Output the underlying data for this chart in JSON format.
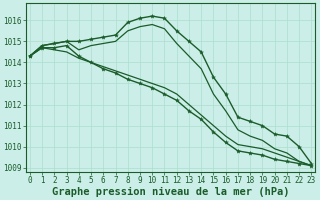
{
  "title": "Graphe pression niveau de la mer (hPa)",
  "xlabel_hours": [
    0,
    1,
    2,
    3,
    4,
    5,
    6,
    7,
    8,
    9,
    10,
    11,
    12,
    13,
    14,
    15,
    16,
    17,
    18,
    19,
    20,
    21,
    22,
    23
  ],
  "ylim": [
    1008.8,
    1016.8
  ],
  "yticks": [
    1009,
    1010,
    1011,
    1012,
    1013,
    1014,
    1015,
    1016
  ],
  "bg_color": "#cceee8",
  "grid_color": "#aaddcc",
  "line_color": "#1a5c2a",
  "lines": [
    {
      "data": [
        1014.3,
        1014.8,
        1014.9,
        1015.0,
        1015.0,
        1015.1,
        1015.2,
        1015.3,
        1015.9,
        1016.1,
        1016.2,
        1016.1,
        1015.5,
        1015.0,
        1014.5,
        1013.3,
        1012.5,
        1011.4,
        1011.2,
        1011.0,
        1010.6,
        1010.5,
        1010.0,
        1009.2
      ],
      "marker": true,
      "lw": 1.0
    },
    {
      "data": [
        1014.3,
        1014.8,
        1014.9,
        1015.0,
        1014.6,
        1014.8,
        1014.9,
        1015.0,
        1015.5,
        1015.7,
        1015.8,
        1015.6,
        1014.9,
        1014.3,
        1013.7,
        1012.5,
        1011.7,
        1010.8,
        1010.5,
        1010.3,
        1009.9,
        1009.7,
        1009.3,
        1009.1
      ],
      "marker": false,
      "lw": 0.9
    },
    {
      "data": [
        1014.3,
        1014.7,
        1014.6,
        1014.5,
        1014.2,
        1014.0,
        1013.8,
        1013.6,
        1013.4,
        1013.2,
        1013.0,
        1012.8,
        1012.5,
        1012.0,
        1011.5,
        1011.0,
        1010.5,
        1010.1,
        1010.0,
        1009.9,
        1009.7,
        1009.5,
        1009.3,
        1009.1
      ],
      "marker": false,
      "lw": 0.9
    },
    {
      "data": [
        1014.3,
        1014.7,
        1014.7,
        1014.8,
        1014.3,
        1014.0,
        1013.7,
        1013.5,
        1013.2,
        1013.0,
        1012.8,
        1012.5,
        1012.2,
        1011.7,
        1011.3,
        1010.7,
        1010.2,
        1009.8,
        1009.7,
        1009.6,
        1009.4,
        1009.3,
        1009.2,
        1009.1
      ],
      "marker": true,
      "lw": 1.0
    }
  ],
  "title_fontsize": 7.5,
  "tick_fontsize": 5.5
}
